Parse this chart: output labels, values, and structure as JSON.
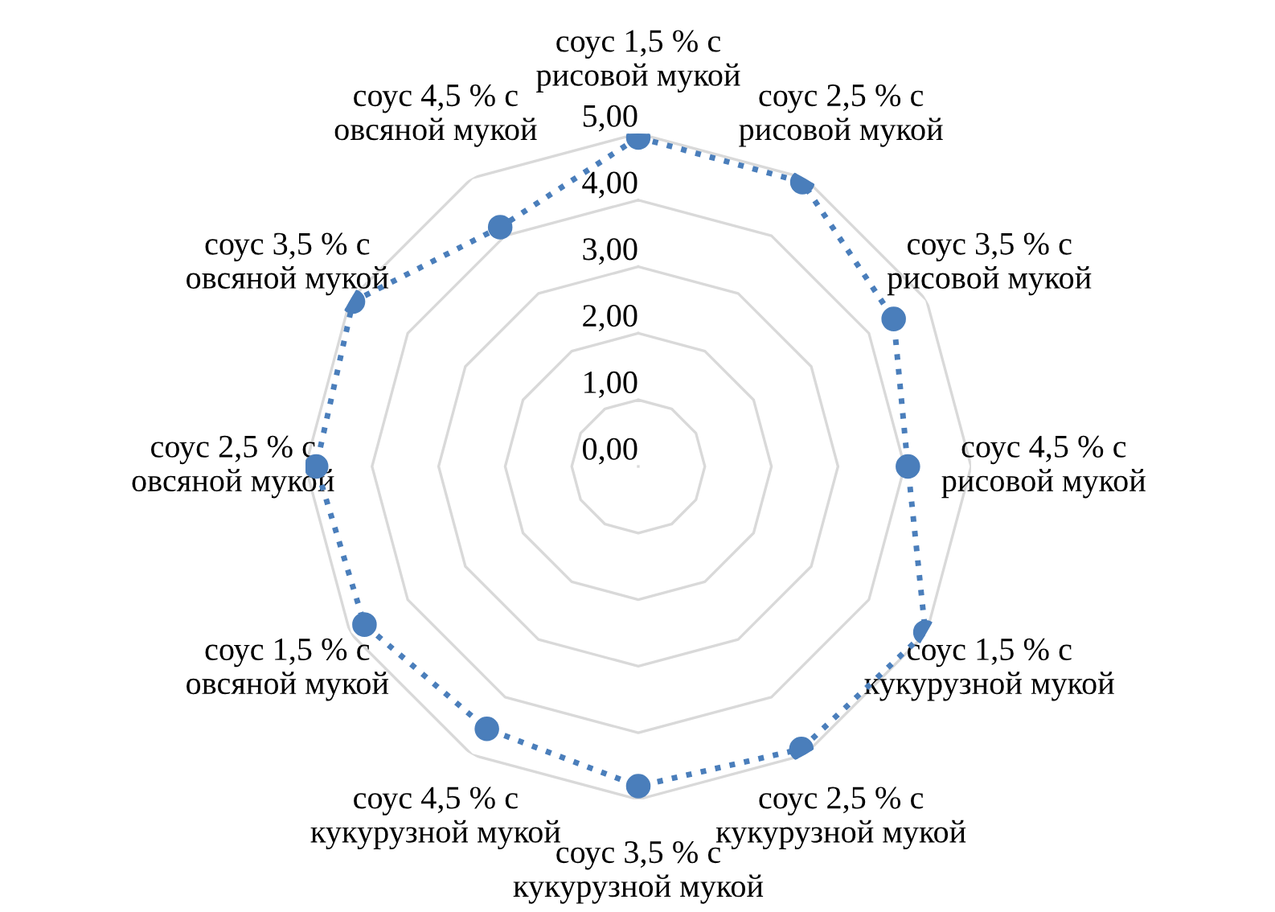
{
  "chart_data": {
    "type": "radar",
    "categories": [
      "соус 1,5 % с\nрисовой мукой",
      "соус 2,5 % с\nрисовой мукой",
      "соус 3,5 % с\nрисовой мукой",
      "соус 4,5 % с\nрисовой мукой",
      "соус 1,5 % с\nкукурузной мукой",
      "соус 2,5 % с\nкукурузной мукой",
      "соус 3,5 % с\nкукурузной мукой",
      "соус 4,5 % с\nкукурузной мукой",
      "соус 1,5 % с\nовсяной мукой",
      "соус 2,5 % с\nовсяной мукой",
      "соус 3,5 % с\nовсяной мукой",
      "соус 4,5 % с\nовсяной мукой"
    ],
    "series": [
      {
        "color": "#4a7ebb",
        "values": [
          4.94,
          4.93,
          4.43,
          4.05,
          4.98,
          4.9,
          4.8,
          4.55,
          4.75,
          4.84,
          4.95,
          4.15
        ]
      }
    ],
    "ylim": [
      0,
      5
    ],
    "yticks": [
      {
        "value": 0,
        "label": "0,00"
      },
      {
        "value": 1,
        "label": "1,00"
      },
      {
        "value": 2,
        "label": "2,00"
      },
      {
        "value": 3,
        "label": "3,00"
      },
      {
        "value": 4,
        "label": "4,00"
      },
      {
        "value": 5,
        "label": "5,00"
      }
    ],
    "grid": true,
    "marker": "circle",
    "line_style": "dotted",
    "legend": false
  }
}
